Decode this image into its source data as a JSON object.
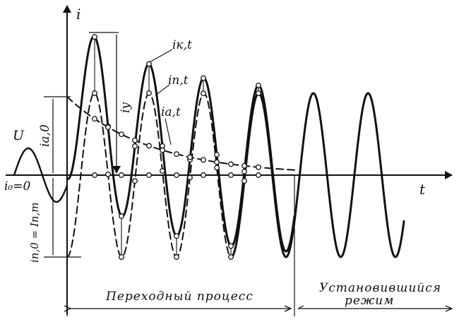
{
  "axes": {
    "y_label": "i",
    "x_label": "t"
  },
  "labels": {
    "voltage": "U",
    "initial_current": "i₀=0",
    "periodic_initial": "iп,0 = Iп,m",
    "aperiodic_initial": "ia,0",
    "shock_current": "iу",
    "total_current": "iк,t",
    "periodic_component": "iп,t",
    "aperiodic_component": "ia,t"
  },
  "regions": {
    "transient": "Переходный  процесс",
    "steady_line1": "Установившийся",
    "steady_line2": "режим"
  },
  "colors": {
    "stroke": "#111111",
    "background": "#ffffff"
  }
}
